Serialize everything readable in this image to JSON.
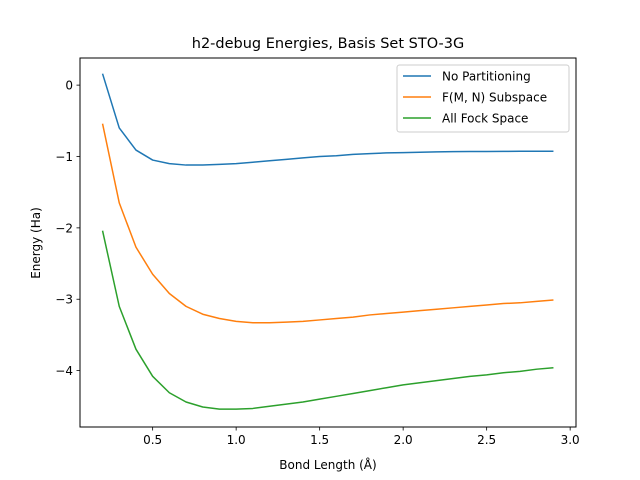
{
  "chart_data": {
    "type": "line",
    "title": "h2-debug Energies, Basis Set STO-3G",
    "xlabel": "Bond Length (Å)",
    "ylabel": "Energy (Ha)",
    "xlim": [
      0.065,
      3.035
    ],
    "ylim": [
      -4.79,
      0.38
    ],
    "xticks": [
      0.5,
      1.0,
      1.5,
      2.0,
      2.5,
      3.0
    ],
    "xtick_labels": [
      "0.5",
      "1.0",
      "1.5",
      "2.0",
      "2.5",
      "3.0"
    ],
    "yticks": [
      0,
      -1,
      -2,
      -3,
      -4
    ],
    "ytick_labels": [
      "0",
      "−1",
      "−2",
      "−3",
      "−4"
    ],
    "grid": false,
    "legend_position": "upper right",
    "x": [
      0.2,
      0.3,
      0.4,
      0.5,
      0.6,
      0.7,
      0.8,
      0.9,
      1.0,
      1.1,
      1.2,
      1.3,
      1.4,
      1.5,
      1.6,
      1.7,
      1.8,
      1.9,
      2.0,
      2.1,
      2.2,
      2.3,
      2.4,
      2.5,
      2.6,
      2.7,
      2.8,
      2.9
    ],
    "series": [
      {
        "name": "No Partitioning",
        "color": "#1f77b4",
        "values": [
          0.16,
          -0.6,
          -0.91,
          -1.05,
          -1.1,
          -1.12,
          -1.12,
          -1.11,
          -1.1,
          -1.08,
          -1.06,
          -1.04,
          -1.02,
          -1.0,
          -0.99,
          -0.97,
          -0.96,
          -0.95,
          -0.945,
          -0.94,
          -0.935,
          -0.932,
          -0.93,
          -0.93,
          -0.928,
          -0.927,
          -0.927,
          -0.926
        ]
      },
      {
        "name": "F(M, N) Subspace",
        "color": "#ff7f0e",
        "values": [
          -0.54,
          -1.65,
          -2.27,
          -2.65,
          -2.92,
          -3.1,
          -3.21,
          -3.27,
          -3.31,
          -3.33,
          -3.33,
          -3.32,
          -3.31,
          -3.29,
          -3.27,
          -3.25,
          -3.22,
          -3.2,
          -3.18,
          -3.16,
          -3.14,
          -3.12,
          -3.1,
          -3.08,
          -3.06,
          -3.05,
          -3.03,
          -3.01
        ]
      },
      {
        "name": "All Fock Space",
        "color": "#2ca02c",
        "values": [
          -2.04,
          -3.1,
          -3.7,
          -4.08,
          -4.31,
          -4.44,
          -4.51,
          -4.54,
          -4.54,
          -4.53,
          -4.5,
          -4.47,
          -4.44,
          -4.4,
          -4.36,
          -4.32,
          -4.28,
          -4.24,
          -4.2,
          -4.17,
          -4.14,
          -4.11,
          -4.08,
          -4.06,
          -4.03,
          -4.01,
          -3.98,
          -3.96
        ]
      }
    ]
  }
}
